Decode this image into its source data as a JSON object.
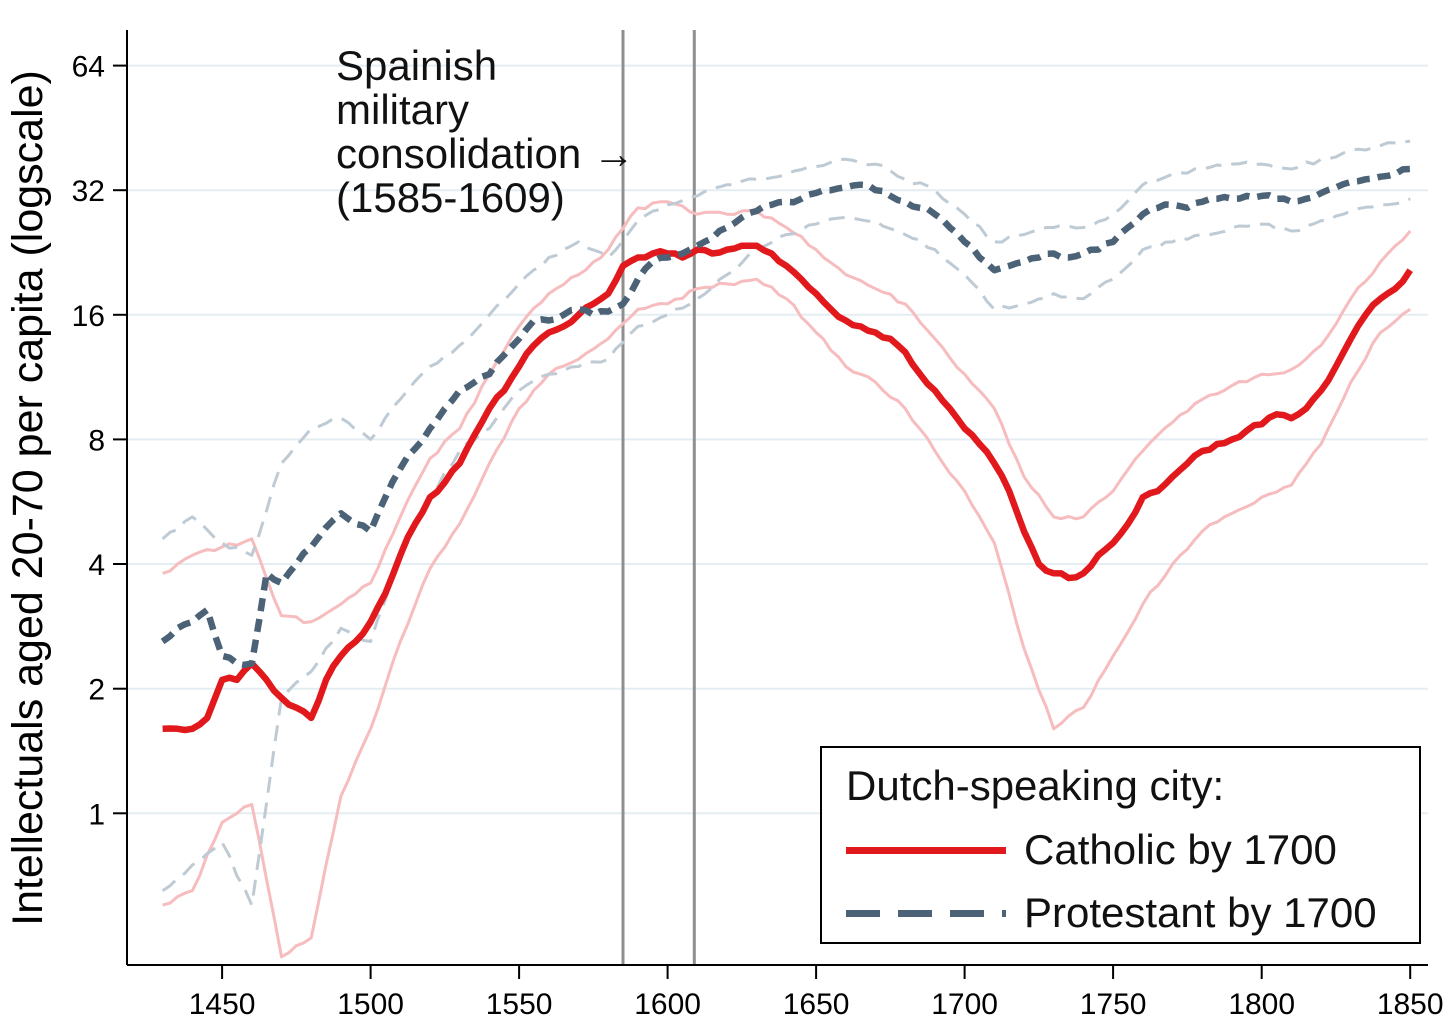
{
  "chart_data": {
    "type": "line",
    "title": "",
    "xlabel": "",
    "ylabel": "Intellectuals aged 20-70 per capita (logscale)",
    "yscale": "log2",
    "xlim": [
      1418,
      1856
    ],
    "ylim": [
      0.43,
      78
    ],
    "xticks": [
      1450,
      1500,
      1550,
      1600,
      1650,
      1700,
      1750,
      1800,
      1850
    ],
    "yticks": [
      1,
      2,
      4,
      8,
      16,
      32,
      64
    ],
    "grid": {
      "horizontal": true,
      "color": "#e4edf2"
    },
    "legend": {
      "title": "Dutch-speaking city:",
      "position": "bottom-right"
    },
    "event_lines": {
      "years": [
        1585,
        1609
      ],
      "color": "#8f8f8f"
    },
    "annotation": {
      "text": "Spainish\nmilitary\nconsolidation →\n(1585-1609)",
      "refers_to_years": [
        1585,
        1609
      ]
    },
    "series": [
      {
        "id": "catholic",
        "name": "Catholic by 1700",
        "role": "mean",
        "color": "#e2191c",
        "line": "solid",
        "width": 6.5,
        "x_start": 1430,
        "x_step": 5,
        "values": [
          1.6,
          1.6,
          1.6,
          1.7,
          2.1,
          2.1,
          2.3,
          2.1,
          1.9,
          1.8,
          1.7,
          2.1,
          2.4,
          2.6,
          2.9,
          3.4,
          4.2,
          5,
          5.8,
          6.3,
          7,
          8.2,
          9.5,
          10.5,
          12,
          13.5,
          14.5,
          15,
          16,
          17,
          18,
          21,
          22,
          22.5,
          22.5,
          22,
          23,
          22.5,
          23,
          23.5,
          23.5,
          22.5,
          21,
          19.5,
          18,
          16.5,
          15.5,
          15,
          14.5,
          14,
          13,
          11.5,
          10.5,
          9.5,
          8.5,
          7.8,
          7,
          6,
          4.8,
          4,
          3.8,
          3.7,
          3.8,
          4.2,
          4.5,
          5,
          5.8,
          6,
          6.5,
          7,
          7.5,
          7.8,
          8,
          8.4,
          8.7,
          9.2,
          9,
          9.5,
          10.5,
          12,
          14,
          16,
          17.5,
          18.5,
          20.5
        ]
      },
      {
        "id": "protestant",
        "name": "Protestant by 1700",
        "role": "mean",
        "color": "#4c6377",
        "line": "dashed",
        "width": 6.5,
        "x_start": 1430,
        "x_step": 5,
        "values": [
          2.6,
          2.8,
          2.9,
          3.1,
          2.4,
          2.3,
          2.3,
          3.8,
          3.6,
          4,
          4.4,
          4.9,
          5.3,
          5,
          4.8,
          5.8,
          6.8,
          7.6,
          8.5,
          9.5,
          10.5,
          11,
          11.5,
          12.8,
          14,
          15.5,
          15.5,
          16,
          16.5,
          16,
          16.3,
          17,
          19.5,
          21.5,
          22,
          22.5,
          23.5,
          24.5,
          26,
          27.5,
          28.5,
          29.5,
          30,
          30.5,
          31.5,
          32,
          32.5,
          33,
          32,
          31,
          30,
          29,
          28,
          26,
          24,
          22,
          20.5,
          21,
          21.5,
          22,
          22.5,
          22,
          22.5,
          23,
          24,
          26,
          28,
          29,
          29.5,
          29,
          30,
          30.5,
          30.5,
          31,
          31,
          30.5,
          30,
          30.5,
          31.5,
          32.5,
          33.5,
          34,
          34.5,
          35,
          36
        ]
      },
      {
        "id": "catholic-ci-upper",
        "name": "Catholic by 1700 (CI upper)",
        "role": "ci",
        "color": "#f6bcbe",
        "line": "solid",
        "width": 3,
        "x_start": 1430,
        "x_step": 10,
        "values": [
          3.8,
          4.2,
          4.4,
          4.6,
          3,
          2.9,
          3.2,
          3.6,
          5.2,
          7.2,
          8.5,
          11.5,
          15,
          18,
          20,
          23,
          29,
          30,
          28,
          28,
          28.5,
          26,
          23,
          20,
          18.5,
          17,
          14,
          11.5,
          9.5,
          6.5,
          5.2,
          5.2,
          6,
          7.5,
          8.8,
          10,
          10.8,
          11.5,
          11.8,
          13.5,
          17.5,
          21.5,
          25.5
        ]
      },
      {
        "id": "catholic-ci-lower",
        "name": "Catholic by 1700 (CI lower)",
        "role": "ci",
        "color": "#f6bcbe",
        "line": "solid",
        "width": 3,
        "x_start": 1430,
        "x_step": 10,
        "values": [
          0.6,
          0.65,
          0.95,
          1.05,
          0.45,
          0.5,
          1.1,
          1.6,
          2.6,
          3.9,
          5,
          7,
          9.5,
          11.5,
          12.5,
          14,
          16.5,
          17,
          18.5,
          19,
          19.5,
          17.5,
          14.5,
          12,
          11,
          9.5,
          7.5,
          6,
          4.5,
          2.5,
          1.6,
          1.8,
          2.4,
          3.2,
          4,
          4.8,
          5.3,
          5.8,
          6.2,
          7.8,
          11,
          14.5,
          16.5
        ]
      },
      {
        "id": "protestant-ci-upper",
        "name": "Protestant by 1700 (CI upper)",
        "role": "ci",
        "color": "#bfcbd4",
        "line": "dashed",
        "width": 3,
        "x_start": 1430,
        "x_step": 10,
        "values": [
          4.6,
          5.2,
          4.5,
          4.2,
          7,
          8.5,
          9,
          8,
          10,
          12,
          13.5,
          16,
          19,
          22,
          24,
          22,
          27,
          29.5,
          31,
          33,
          34,
          35,
          36.5,
          38,
          37,
          34,
          32,
          28,
          24,
          25,
          26,
          26,
          28,
          33,
          35,
          36,
          37,
          37,
          36,
          38,
          40,
          41,
          42
        ]
      },
      {
        "id": "protestant-ci-lower",
        "name": "Protestant by 1700 (CI lower)",
        "role": "ci",
        "color": "#bfcbd4",
        "line": "dashed",
        "width": 3,
        "x_start": 1430,
        "x_step": 10,
        "values": [
          0.65,
          0.75,
          0.85,
          0.6,
          1.9,
          2.2,
          2.8,
          2.6,
          4.2,
          5.8,
          7.5,
          8.5,
          10.5,
          11.5,
          12,
          12.5,
          15,
          16,
          17.5,
          20,
          23,
          25,
          26.5,
          27.5,
          27,
          25,
          23,
          20,
          16.5,
          17,
          18,
          17.5,
          19.5,
          23,
          24,
          25,
          26,
          26.5,
          25.5,
          27,
          28.5,
          29.5,
          30.5
        ]
      }
    ]
  }
}
